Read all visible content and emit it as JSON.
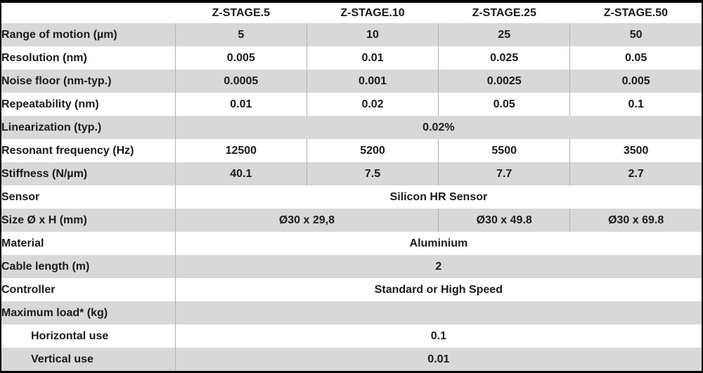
{
  "colors": {
    "frame": "#000000",
    "row_shade": "#d8d8d8",
    "row_plain": "#ffffff",
    "divider": "#b3b3b3",
    "text": "#1a1a1a"
  },
  "table": {
    "corner_header": "",
    "column_headers": [
      "Z-STAGE.5",
      "Z-STAGE.10",
      "Z-STAGE.25",
      "Z-STAGE.50"
    ],
    "rows": [
      {
        "label": "Range of motion (µm)",
        "values": [
          "5",
          "10",
          "25",
          "50"
        ]
      },
      {
        "label": "Resolution (nm)",
        "values": [
          "0.005",
          "0.01",
          "0.025",
          "0.05"
        ]
      },
      {
        "label": "Noise floor (nm-typ.)",
        "values": [
          "0.0005",
          "0.001",
          "0.0025",
          "0.005"
        ]
      },
      {
        "label": "Repeatability (nm)",
        "values": [
          "0.01",
          "0.02",
          "0.05",
          "0.1"
        ]
      },
      {
        "label": "Linearization (typ.)",
        "values": [
          "0.02%"
        ]
      },
      {
        "label": "Resonant frequency (Hz)",
        "values": [
          "12500",
          "5200",
          "5500",
          "3500"
        ]
      },
      {
        "label": "Stiffness (N/µm)",
        "values": [
          "40.1",
          "7.5",
          "7.7",
          "2.7"
        ]
      },
      {
        "label": "Sensor",
        "values": [
          "Silicon HR Sensor"
        ]
      },
      {
        "label": "Size Ø x H (mm)",
        "values": [
          "Ø30 x 29,8",
          "Ø30 x 49.8",
          "Ø30 x 69.8"
        ]
      },
      {
        "label": "Material",
        "values": [
          "Aluminium"
        ]
      },
      {
        "label": "Cable length (m)",
        "values": [
          "2"
        ]
      },
      {
        "label": "Controller",
        "values": [
          "Standard or High Speed"
        ]
      },
      {
        "label": "Maximum load* (kg)",
        "values": [
          ""
        ]
      },
      {
        "label": "Horizontal use",
        "values": [
          "0.1"
        ]
      },
      {
        "label": "Vertical use",
        "values": [
          "0.01"
        ]
      }
    ]
  }
}
